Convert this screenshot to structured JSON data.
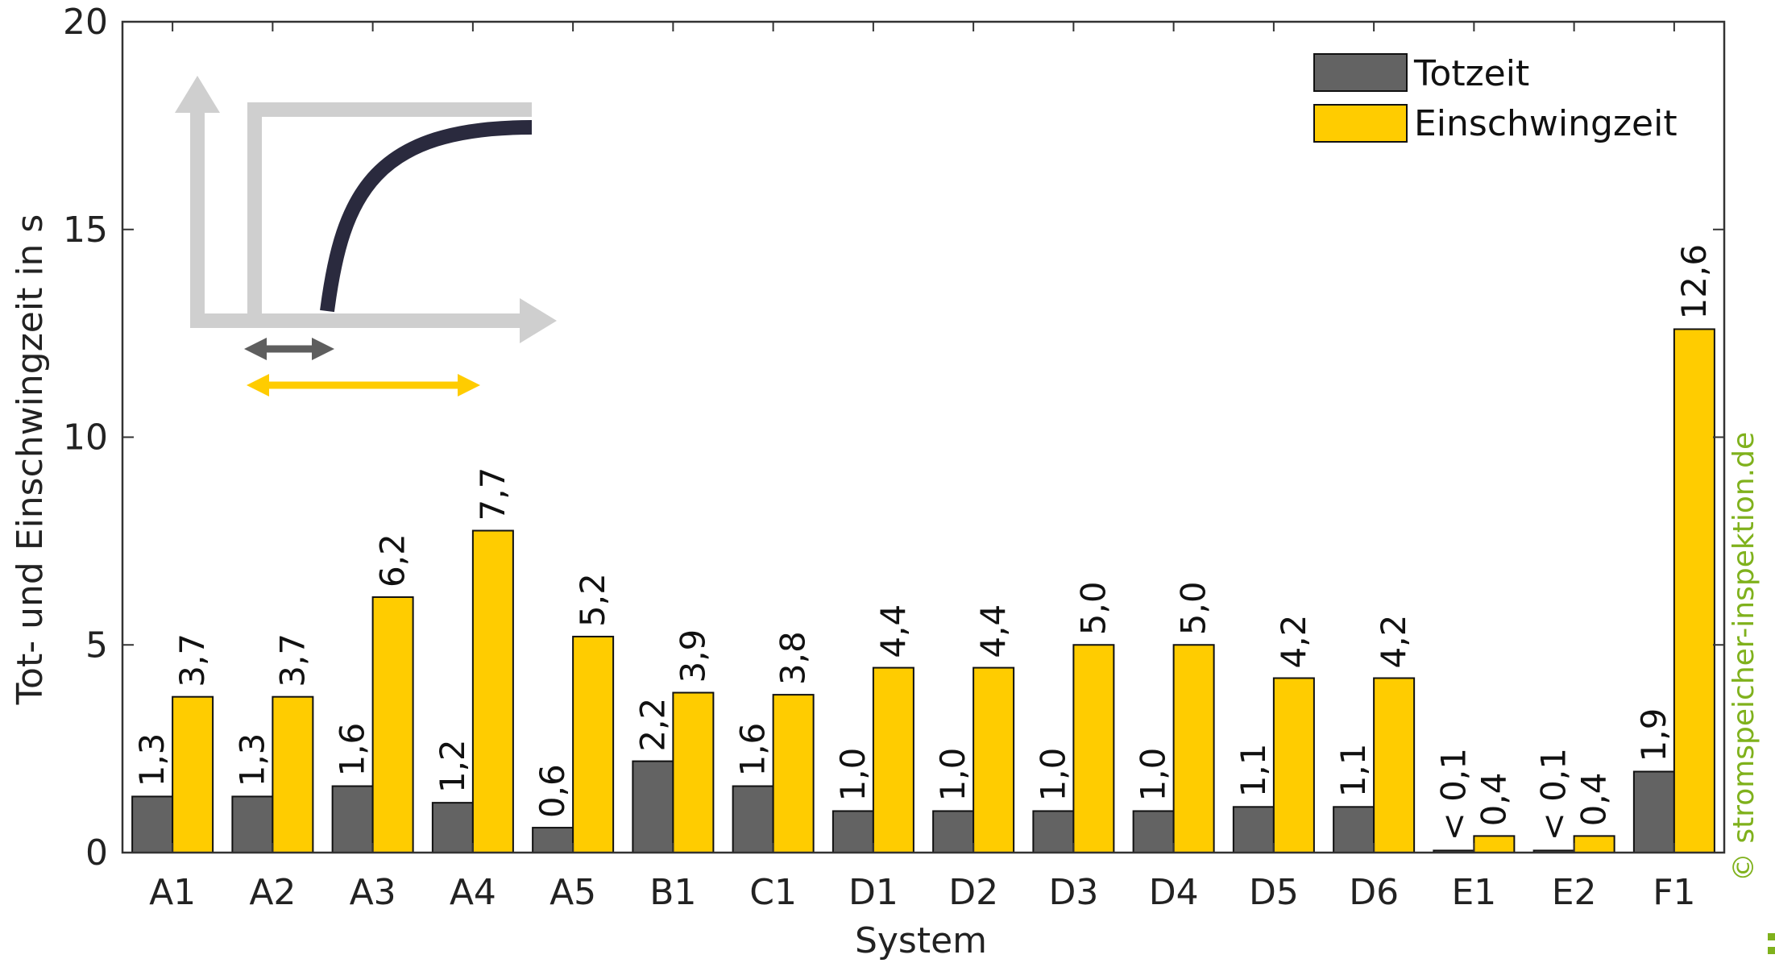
{
  "chart_data": {
    "type": "bar",
    "xlabel": "System",
    "ylabel": "Tot- und Einschwingzeit in s",
    "ylim": [
      0,
      20
    ],
    "yticks": [
      0,
      5,
      10,
      15,
      20
    ],
    "grid": false,
    "legend_position": "top-right",
    "categories": [
      "A1",
      "A2",
      "A3",
      "A4",
      "A5",
      "B1",
      "C1",
      "D1",
      "D2",
      "D3",
      "D4",
      "D5",
      "D6",
      "E1",
      "E2",
      "F1"
    ],
    "series": [
      {
        "name": "Totzeit",
        "color": "#636363",
        "values": [
          1.35,
          1.35,
          1.6,
          1.2,
          0.6,
          2.2,
          1.6,
          1.0,
          1.0,
          1.0,
          1.0,
          1.1,
          1.1,
          0.05,
          0.05,
          1.95
        ],
        "labels": [
          "1,3",
          "1,3",
          "1,6",
          "1,2",
          "0,6",
          "2,2",
          "1,6",
          "1,0",
          "1,0",
          "1,0",
          "1,0",
          "1,1",
          "1,1",
          "< 0,1",
          "< 0,1",
          "1,9"
        ]
      },
      {
        "name": "Einschwingzeit",
        "color": "#ffcc00",
        "values": [
          3.75,
          3.75,
          6.15,
          7.75,
          5.2,
          3.85,
          3.8,
          4.45,
          4.45,
          5.0,
          5.0,
          4.2,
          4.2,
          0.4,
          0.4,
          12.6
        ],
        "labels": [
          "3,7",
          "3,7",
          "6,2",
          "7,7",
          "5,2",
          "3,9",
          "3,8",
          "4,4",
          "4,4",
          "5,0",
          "5,0",
          "4,2",
          "4,2",
          "0,4",
          "0,4",
          "12,6"
        ]
      }
    ],
    "inset_icon": "step-response-icon",
    "inset_colors": {
      "axes": "#cfcfcf",
      "curve": "#2a2a3e",
      "dead_time_arrow": "#5e5e5e",
      "settling_arrow": "#ffcc00"
    }
  },
  "watermark": {
    "text": "© stromspeicher-inspektion.de",
    "color": "#7fb11c"
  }
}
